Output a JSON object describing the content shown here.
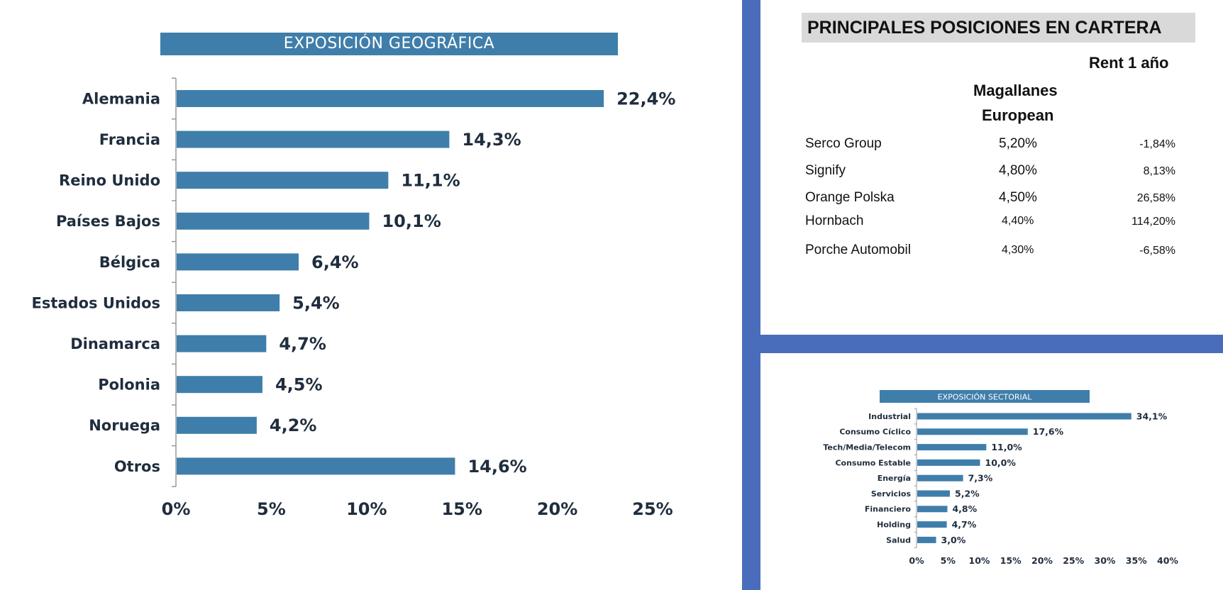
{
  "chart_data": [
    {
      "type": "bar",
      "orientation": "horizontal",
      "title": "EXPOSICIÓN GEOGRÁFICA",
      "categories": [
        "Alemania",
        "Francia",
        "Reino Unido",
        "Países Bajos",
        "Bélgica",
        "Estados Unidos",
        "Dinamarca",
        "Polonia",
        "Noruega",
        "Otros"
      ],
      "values": [
        22.4,
        14.3,
        11.1,
        10.1,
        6.4,
        5.4,
        4.7,
        4.5,
        4.2,
        14.6
      ],
      "value_labels": [
        "22,4%",
        "14,3%",
        "11,1%",
        "10,1%",
        "6,4%",
        "5,4%",
        "4,7%",
        "4,5%",
        "4,2%",
        "14,6%"
      ],
      "xlim": [
        0,
        25
      ],
      "ticks": [
        "0%",
        "5%",
        "10%",
        "15%",
        "20%",
        "25%"
      ],
      "xlabel": "",
      "ylabel": "",
      "color": "#3f7eaa"
    },
    {
      "type": "bar",
      "orientation": "horizontal",
      "title": "EXPOSICIÓN SECTORIAL",
      "categories": [
        "Industrial",
        "Consumo Cíclico",
        "Tech/Media/Telecom",
        "Consumo Estable",
        "Energía",
        "Servicios",
        "Financiero",
        "Holding",
        "Salud"
      ],
      "values": [
        34.1,
        17.6,
        11.0,
        10.0,
        7.3,
        5.2,
        4.8,
        4.7,
        3.0
      ],
      "value_labels": [
        "34,1%",
        "17,6%",
        "11,0%",
        "10,0%",
        "7,3%",
        "5,2%",
        "4,8%",
        "4,7%",
        "3,0%"
      ],
      "xlim": [
        0,
        40
      ],
      "ticks": [
        "0%",
        "5%",
        "10%",
        "15%",
        "20%",
        "25%",
        "30%",
        "35%",
        "40%"
      ],
      "xlabel": "",
      "ylabel": "",
      "color": "#3f7eaa"
    }
  ],
  "holdings": {
    "title": "PRINCIPALES POSICIONES EN CARTERA",
    "col_return": "Rent 1 año",
    "col_weight_line1": "Magallanes",
    "col_weight_line2": "European",
    "rows": [
      {
        "name": "Serco Group",
        "weight": "5,20%",
        "ret": "-1,84%"
      },
      {
        "name": "Signify",
        "weight": "4,80%",
        "ret": "8,13%"
      },
      {
        "name": "Orange Polska",
        "weight": "4,50%",
        "ret": "26,58%"
      },
      {
        "name": "Hornbach",
        "weight": "4,40%",
        "ret": "114,20%"
      },
      {
        "name": "Porche Automobil",
        "weight": "4,30%",
        "ret": "-6,58%"
      }
    ]
  }
}
